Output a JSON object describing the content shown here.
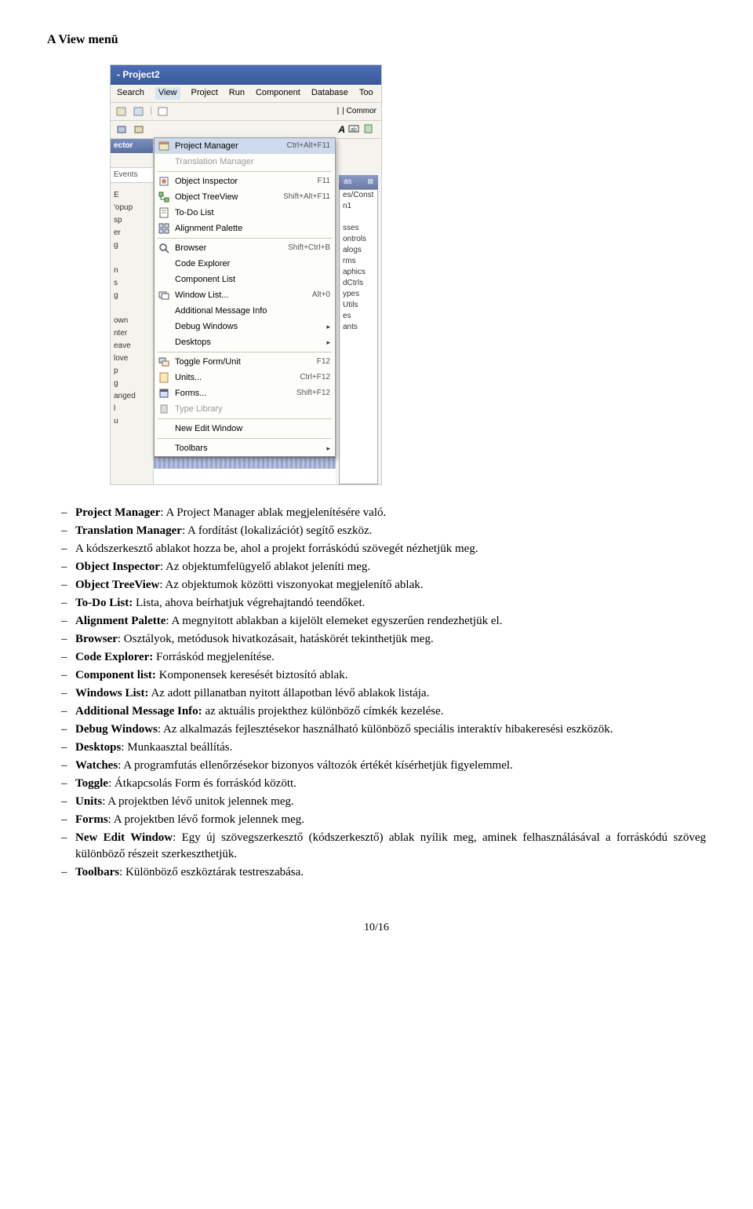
{
  "heading": "A View menü",
  "screenshot": {
    "title": "- Project2",
    "menubar": [
      "Search",
      "View",
      "Project",
      "Run",
      "Component",
      "Database",
      "Too"
    ],
    "left": {
      "header": "ector",
      "events": "Events",
      "rows1": [
        "E"
      ],
      "rows2": [
        "'opup",
        "sp",
        "er",
        "g",
        "",
        "n",
        "s",
        "g",
        "",
        "own",
        "nter",
        "eave",
        "love",
        "p",
        "g",
        "anged",
        "l",
        "u"
      ]
    },
    "menu": [
      {
        "icon": "pm",
        "label": "Project Manager",
        "shortcut": "Ctrl+Alt+F11",
        "highlight": true
      },
      {
        "icon": "",
        "label": "Translation Manager",
        "shortcut": "",
        "disabled": true
      },
      {
        "sep": true
      },
      {
        "icon": "oi",
        "label": "Object Inspector",
        "shortcut": "F11"
      },
      {
        "icon": "tv",
        "label": "Object TreeView",
        "shortcut": "Shift+Alt+F11"
      },
      {
        "icon": "td",
        "label": "To-Do List",
        "shortcut": ""
      },
      {
        "icon": "ap",
        "label": "Alignment Palette",
        "shortcut": ""
      },
      {
        "sep": true
      },
      {
        "icon": "br",
        "label": "Browser",
        "shortcut": "Shift+Ctrl+B"
      },
      {
        "icon": "",
        "label": "Code Explorer",
        "shortcut": ""
      },
      {
        "icon": "",
        "label": "Component List",
        "shortcut": ""
      },
      {
        "icon": "wl",
        "label": "Window List...",
        "shortcut": "Alt+0"
      },
      {
        "icon": "",
        "label": "Additional Message Info",
        "shortcut": ""
      },
      {
        "icon": "",
        "label": "Debug Windows",
        "shortcut": "",
        "arrow": true
      },
      {
        "icon": "",
        "label": "Desktops",
        "shortcut": "",
        "arrow": true
      },
      {
        "sep": true
      },
      {
        "icon": "tg",
        "label": "Toggle Form/Unit",
        "shortcut": "F12"
      },
      {
        "icon": "un",
        "label": "Units...",
        "shortcut": "Ctrl+F12"
      },
      {
        "icon": "fm",
        "label": "Forms...",
        "shortcut": "Shift+F12"
      },
      {
        "icon": "tl",
        "label": "Type Library",
        "shortcut": "",
        "disabled": true
      },
      {
        "sep": true
      },
      {
        "icon": "",
        "label": "New Edit Window",
        "shortcut": ""
      },
      {
        "sep": true
      },
      {
        "icon": "",
        "label": "Toolbars",
        "shortcut": "",
        "arrow": true
      }
    ],
    "right": {
      "tab": "| Commor",
      "letters": "A",
      "panel_label": "as",
      "items": [
        "es/Const",
        "n1",
        "",
        "sses",
        "ontrols",
        "alogs",
        "rms",
        "aphics",
        "dCtrls",
        "ypes",
        "Utils",
        "es",
        "ants"
      ]
    }
  },
  "bullets": [
    {
      "term": "Project Manager",
      "text": ": A Project Manager ablak megjelenítésére való."
    },
    {
      "term": "Translation Manager",
      "text": ": A fordítást (lokalizációt) segítő eszköz."
    },
    {
      "term": "",
      "text": "A kódszerkesztő ablakot hozza be, ahol a projekt forráskódú szövegét nézhetjük meg."
    },
    {
      "term": "Object Inspector",
      "text": ": Az objektumfelügyelő ablakot jeleníti meg."
    },
    {
      "term": "Object TreeView",
      "text": ": Az objektumok közötti viszonyokat megjelenítő ablak."
    },
    {
      "term": "To-Do List:",
      "text": " Lista, ahova beírhatjuk végrehajtandó teendőket."
    },
    {
      "term": "Alignment Palette",
      "text": ": A megnyitott ablakban a kijelölt elemeket egyszerűen rendezhetjük el."
    },
    {
      "term": "Browser",
      "text": ": Osztályok, metódusok hivatkozásait, hatáskörét tekinthetjük meg."
    },
    {
      "term": "Code Explorer:",
      "text": " Forráskód megjelenítése."
    },
    {
      "term": "Component list:",
      "text": " Komponensek keresését biztosító ablak."
    },
    {
      "term": "Windows List:",
      "text": " Az adott pillanatban nyitott állapotban lévő ablakok listája."
    },
    {
      "term": "Additional Message Info:",
      "text": " az aktuális projekthez különböző címkék kezelése."
    },
    {
      "term": "Debug Windows",
      "text": ": Az alkalmazás fejlesztésekor használható különböző speciális interaktív hibakeresési eszközök."
    },
    {
      "term": "Desktops",
      "text": ": Munkaasztal beállítás."
    },
    {
      "term": "Watches",
      "text": ": A programfutás ellenőrzésekor bizonyos változók értékét kísérhetjük figyelemmel."
    },
    {
      "term": "Toggle",
      "text": ": Átkapcsolás Form és forráskód között."
    },
    {
      "term": "Units",
      "text": ": A projektben lévő unitok jelennek meg."
    },
    {
      "term": "Forms",
      "text": ": A projektben lévő formok jelennek meg."
    },
    {
      "term": "New Edit Window",
      "text": ": Egy új szövegszerkesztő (kódszerkesztő) ablak nyílik meg, aminek felhasználásával a forráskódú szöveg különböző részeit szerkeszthetjük."
    },
    {
      "term": "Toolbars",
      "text": ": Különböző eszköztárak testreszabása."
    }
  ],
  "pagenum": "10/16"
}
